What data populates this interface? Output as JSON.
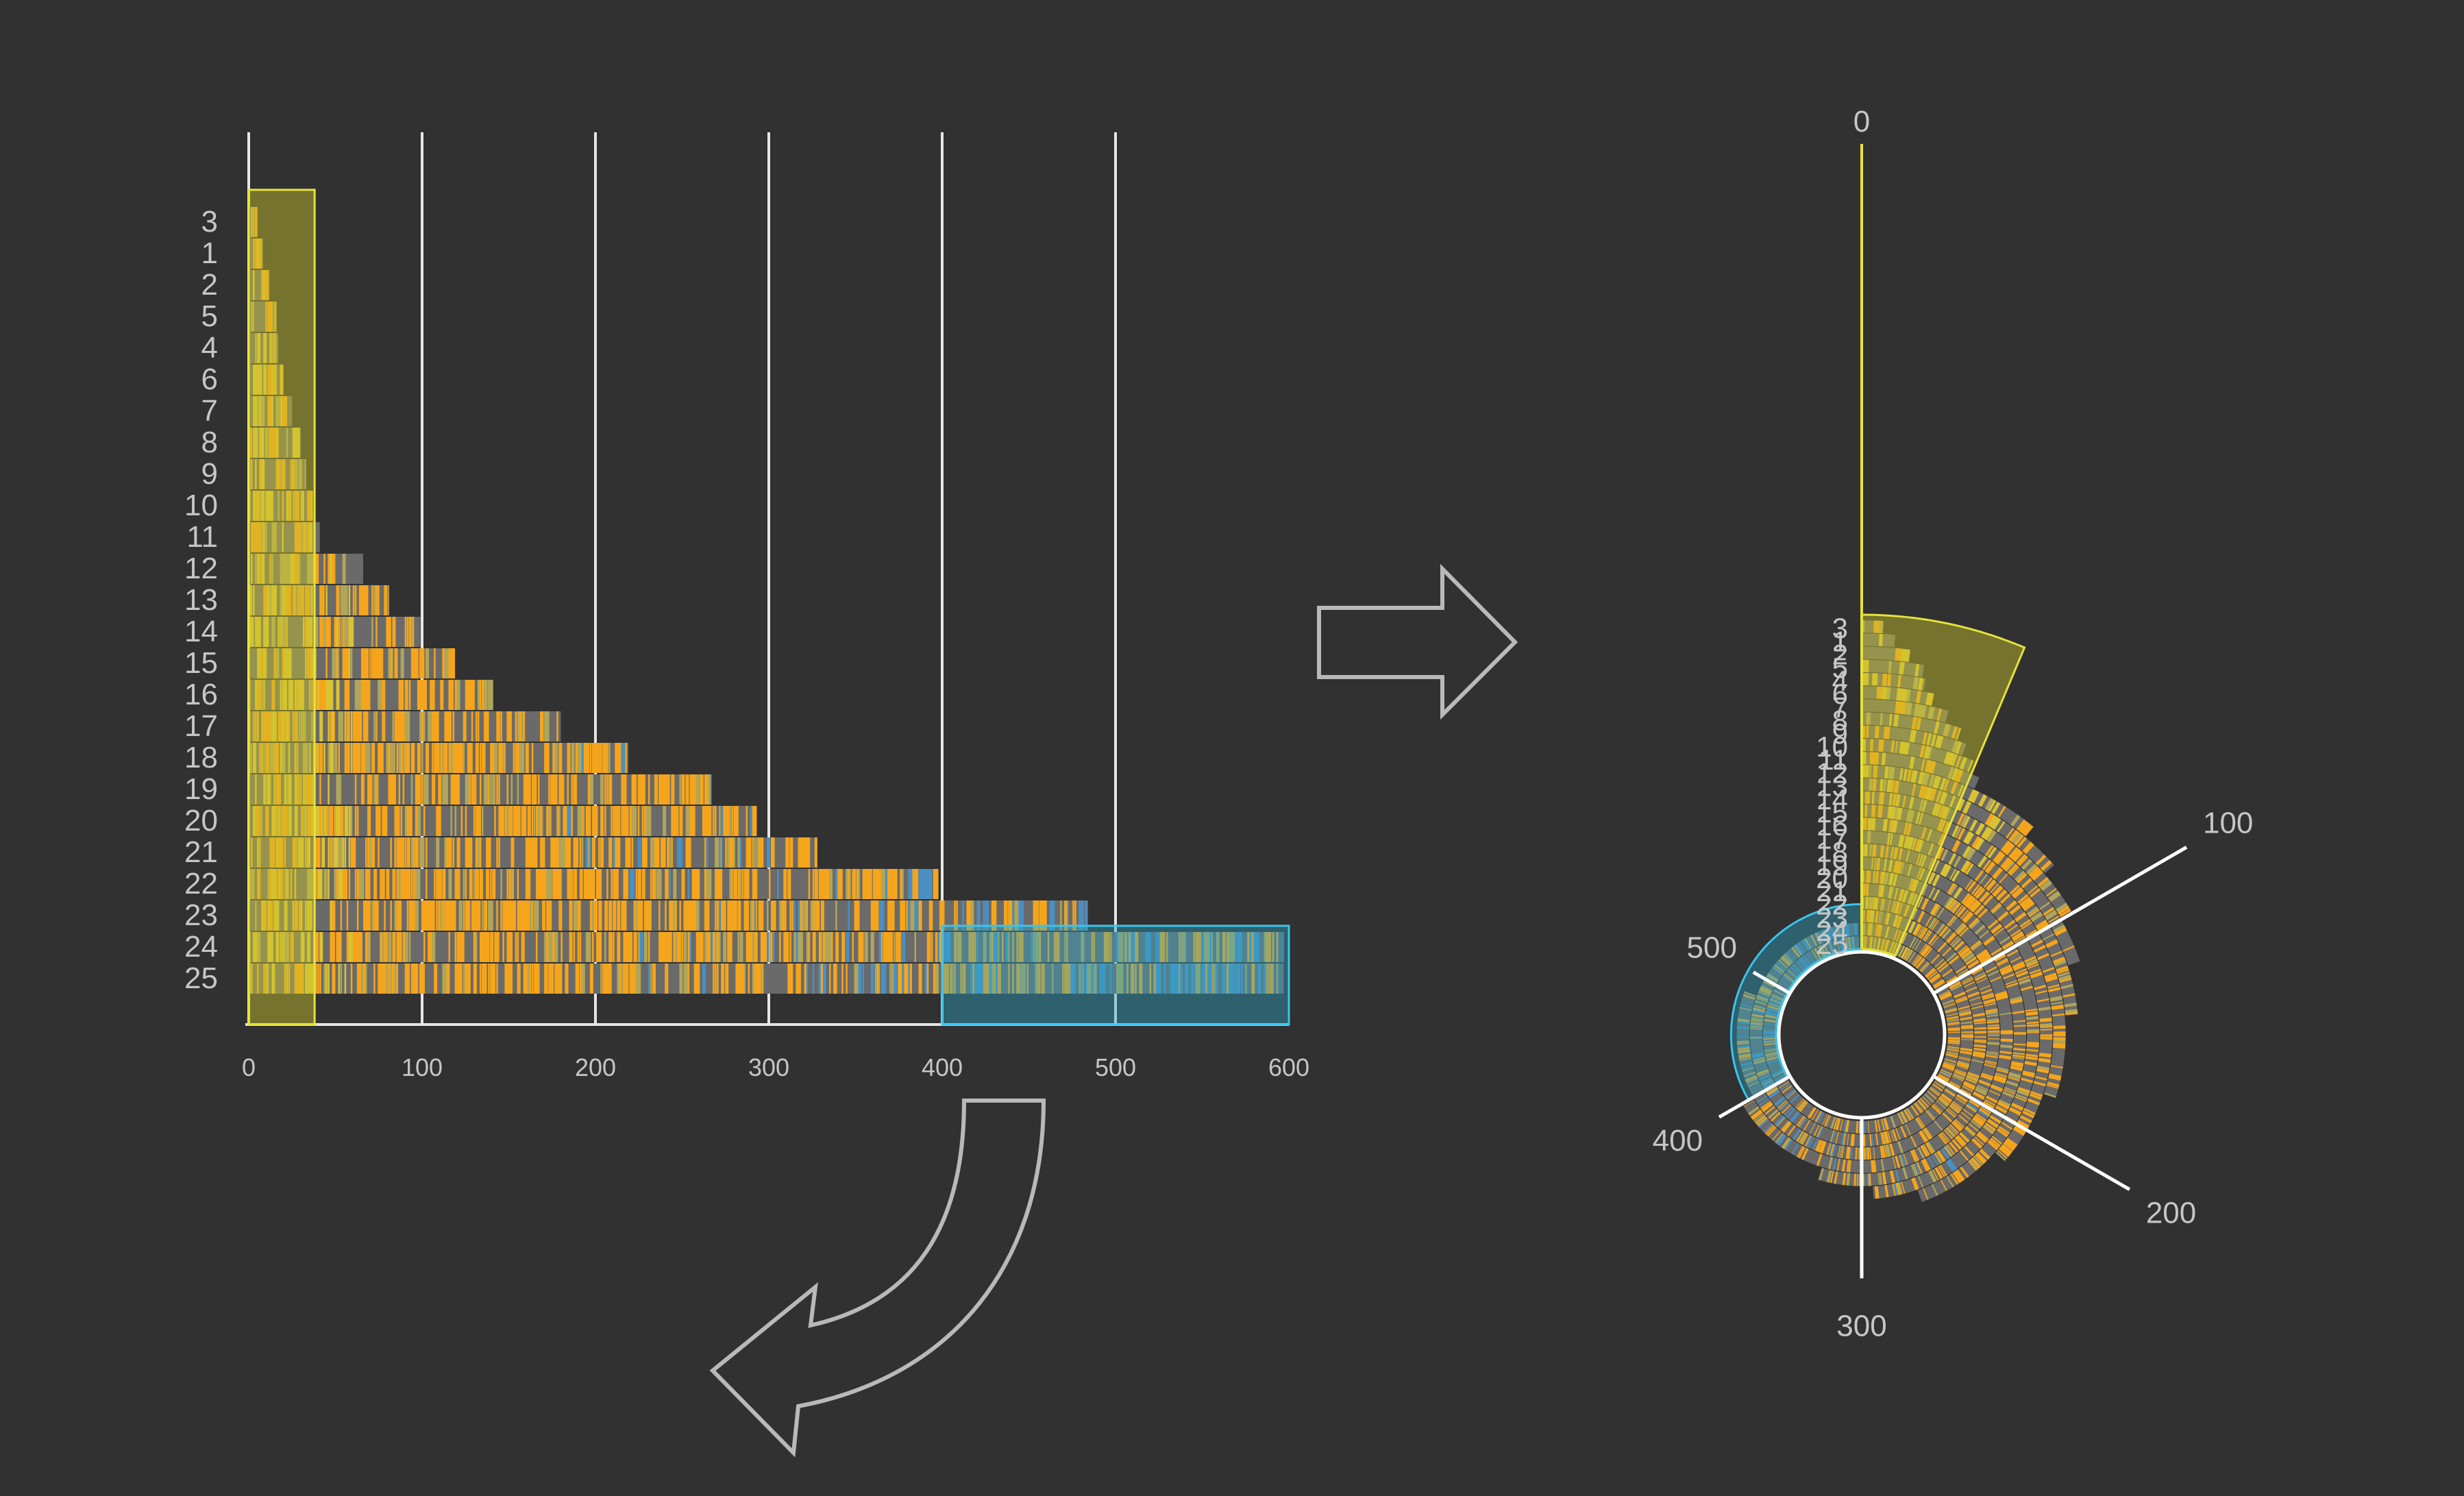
{
  "row_labels": [
    "3",
    "1",
    "2",
    "5",
    "4",
    "6",
    "7",
    "8",
    "9",
    "10",
    "11",
    "12",
    "13",
    "14",
    "15",
    "16",
    "17",
    "18",
    "19",
    "20",
    "21",
    "22",
    "23",
    "24",
    "25"
  ],
  "row_lengths": [
    5,
    8,
    12,
    16,
    17,
    20,
    25,
    30,
    33,
    37,
    41,
    66,
    81,
    99,
    119,
    141,
    180,
    219,
    267,
    293,
    328,
    398,
    484,
    597,
    597
  ],
  "linear_axis": {
    "ticks": [
      0,
      100,
      200,
      300,
      400,
      500,
      600
    ],
    "range": [
      0,
      600
    ]
  },
  "radial_axis": {
    "top_label": "0",
    "tick_labels": [
      "100",
      "200",
      "300",
      "400",
      "500"
    ]
  },
  "highlights": [
    {
      "name": "yellow",
      "range": [
        0,
        38
      ],
      "color": "#c9c62a"
    },
    {
      "name": "blue",
      "range": [
        400,
        600
      ],
      "rows": [
        "23",
        "24",
        "25"
      ],
      "color": "#2aa7c9"
    }
  ],
  "palette": {
    "background": "#313131",
    "bar": "#6a6a6a",
    "orange": "#f5a51c",
    "yellow": "#d9c233",
    "blue": "#4a8fc4",
    "arrow": "#b9b9b9"
  }
}
